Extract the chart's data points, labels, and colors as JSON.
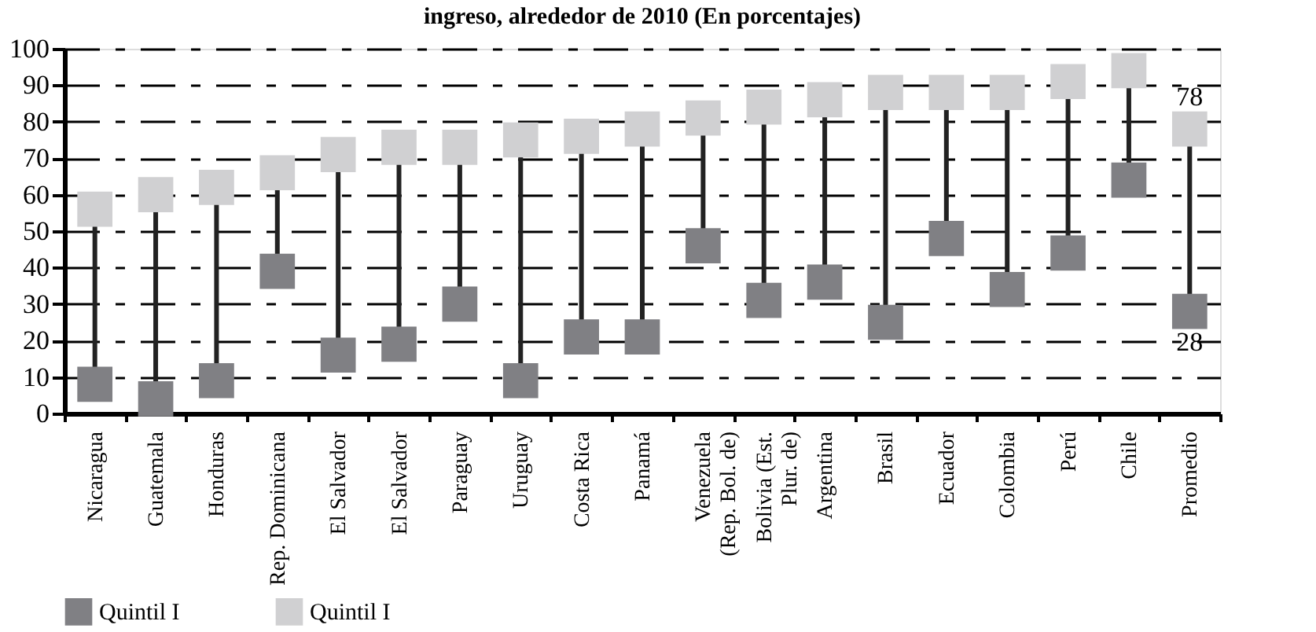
{
  "chart_data": {
    "type": "scatter",
    "title": "ingreso, alrededor de 2010 (En porcentajes)",
    "categories": [
      "Nicaragua",
      "Guatemala",
      "Honduras",
      "Rep. Dominicana",
      "El Salvador",
      "El Salvador",
      "Paraguay",
      "Uruguay",
      "Costa Rica",
      "Panamá",
      "Venezuela\n(Rep. Bol. de)",
      "Bolivia (Est.\nPlur. de)",
      "Argentina",
      "Brasil",
      "Ecuador",
      "Colombia",
      "Perú",
      "Chile",
      "Promedio"
    ],
    "series": [
      {
        "name": "Quintil I",
        "color": "#808084",
        "values": [
          8,
          4,
          9,
          39,
          16,
          19,
          30,
          9,
          21,
          21,
          46,
          31,
          36,
          25,
          48,
          34,
          44,
          64,
          28
        ],
        "value_labels": [
          null,
          null,
          null,
          null,
          null,
          null,
          null,
          null,
          null,
          null,
          null,
          null,
          null,
          null,
          null,
          null,
          null,
          null,
          "28"
        ]
      },
      {
        "name": "Quintil I",
        "color": "#d0d0d2",
        "values": [
          56,
          60,
          62,
          66,
          71,
          73,
          73,
          75,
          76,
          78,
          81,
          84,
          86,
          88,
          88,
          88,
          91,
          94,
          78
        ],
        "value_labels": [
          null,
          null,
          null,
          null,
          null,
          null,
          null,
          null,
          null,
          null,
          null,
          null,
          null,
          null,
          null,
          null,
          null,
          null,
          "78"
        ]
      }
    ],
    "ylim": [
      0,
      100
    ],
    "yticks": [
      0,
      10,
      20,
      30,
      40,
      50,
      60,
      70,
      80,
      90,
      100
    ],
    "grid": "y",
    "legend": "bottom",
    "marker": "square"
  }
}
